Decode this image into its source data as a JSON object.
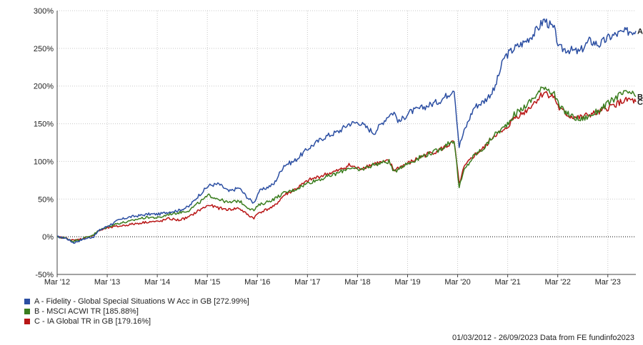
{
  "chart_data": {
    "type": "line",
    "y_axis": {
      "min": -50,
      "max": 300,
      "step": 50,
      "unit": "%",
      "ticks": [
        "-50%",
        "0%",
        "50%",
        "100%",
        "150%",
        "200%",
        "250%",
        "300%"
      ]
    },
    "x_axis": {
      "ticks": [
        "Mar '12",
        "Mar '13",
        "Mar '14",
        "Mar '15",
        "Mar '16",
        "Mar '17",
        "Mar '18",
        "Mar '19",
        "Mar '20",
        "Mar '21",
        "Mar '22",
        "Mar '23"
      ]
    },
    "grid": true,
    "zero_line": "dotted",
    "series": [
      {
        "name": "A - Fidelity - Global Special Situations W Acc in GB [272.99%]",
        "end_label": "A",
        "color": "#2b4ea2",
        "points": [
          [
            2012.17,
            0
          ],
          [
            2012.35,
            -2
          ],
          [
            2012.5,
            -8
          ],
          [
            2012.7,
            -3
          ],
          [
            2012.9,
            0
          ],
          [
            2013.0,
            8
          ],
          [
            2013.2,
            15
          ],
          [
            2013.4,
            22
          ],
          [
            2013.6,
            26
          ],
          [
            2013.8,
            28
          ],
          [
            2014.0,
            30
          ],
          [
            2014.2,
            30
          ],
          [
            2014.4,
            33
          ],
          [
            2014.6,
            35
          ],
          [
            2014.8,
            40
          ],
          [
            2015.0,
            55
          ],
          [
            2015.2,
            68
          ],
          [
            2015.4,
            70
          ],
          [
            2015.6,
            60
          ],
          [
            2015.8,
            65
          ],
          [
            2016.0,
            50
          ],
          [
            2016.1,
            45
          ],
          [
            2016.2,
            60
          ],
          [
            2016.5,
            70
          ],
          [
            2016.7,
            95
          ],
          [
            2016.9,
            100
          ],
          [
            2017.2,
            118
          ],
          [
            2017.5,
            132
          ],
          [
            2017.8,
            140
          ],
          [
            2018.0,
            150
          ],
          [
            2018.2,
            152
          ],
          [
            2018.5,
            138
          ],
          [
            2018.8,
            162
          ],
          [
            2018.9,
            165
          ],
          [
            2019.0,
            152
          ],
          [
            2019.2,
            165
          ],
          [
            2019.5,
            172
          ],
          [
            2019.8,
            180
          ],
          [
            2020.0,
            190
          ],
          [
            2020.1,
            197
          ],
          [
            2020.2,
            120
          ],
          [
            2020.3,
            140
          ],
          [
            2020.5,
            172
          ],
          [
            2020.7,
            180
          ],
          [
            2020.9,
            195
          ],
          [
            2021.1,
            238
          ],
          [
            2021.3,
            250
          ],
          [
            2021.5,
            258
          ],
          [
            2021.7,
            270
          ],
          [
            2021.9,
            288
          ],
          [
            2022.1,
            275
          ],
          [
            2022.2,
            250
          ],
          [
            2022.4,
            248
          ],
          [
            2022.6,
            245
          ],
          [
            2022.8,
            260
          ],
          [
            2023.0,
            255
          ],
          [
            2023.2,
            265
          ],
          [
            2023.4,
            270
          ],
          [
            2023.6,
            273
          ],
          [
            2023.73,
            273
          ]
        ]
      },
      {
        "name": "B - MSCI ACWI TR [185.88%]",
        "end_label": "B",
        "color": "#3a7d1e",
        "points": [
          [
            2012.17,
            0
          ],
          [
            2012.35,
            -2
          ],
          [
            2012.5,
            -6
          ],
          [
            2012.7,
            -2
          ],
          [
            2012.9,
            3
          ],
          [
            2013.0,
            8
          ],
          [
            2013.2,
            14
          ],
          [
            2013.4,
            18
          ],
          [
            2013.6,
            20
          ],
          [
            2013.8,
            24
          ],
          [
            2014.0,
            26
          ],
          [
            2014.2,
            25
          ],
          [
            2014.4,
            30
          ],
          [
            2014.6,
            32
          ],
          [
            2014.8,
            35
          ],
          [
            2015.0,
            45
          ],
          [
            2015.2,
            55
          ],
          [
            2015.4,
            50
          ],
          [
            2015.6,
            45
          ],
          [
            2015.8,
            48
          ],
          [
            2016.0,
            38
          ],
          [
            2016.1,
            35
          ],
          [
            2016.2,
            42
          ],
          [
            2016.5,
            50
          ],
          [
            2016.7,
            58
          ],
          [
            2016.9,
            62
          ],
          [
            2017.2,
            72
          ],
          [
            2017.5,
            78
          ],
          [
            2017.8,
            85
          ],
          [
            2018.0,
            92
          ],
          [
            2018.2,
            88
          ],
          [
            2018.5,
            96
          ],
          [
            2018.8,
            100
          ],
          [
            2018.9,
            85
          ],
          [
            2019.0,
            92
          ],
          [
            2019.2,
            98
          ],
          [
            2019.5,
            108
          ],
          [
            2019.8,
            115
          ],
          [
            2020.0,
            125
          ],
          [
            2020.1,
            128
          ],
          [
            2020.2,
            65
          ],
          [
            2020.3,
            88
          ],
          [
            2020.5,
            108
          ],
          [
            2020.7,
            118
          ],
          [
            2020.9,
            135
          ],
          [
            2021.1,
            145
          ],
          [
            2021.3,
            162
          ],
          [
            2021.5,
            172
          ],
          [
            2021.7,
            185
          ],
          [
            2021.9,
            200
          ],
          [
            2022.1,
            190
          ],
          [
            2022.2,
            172
          ],
          [
            2022.4,
            162
          ],
          [
            2022.6,
            155
          ],
          [
            2022.8,
            160
          ],
          [
            2023.0,
            168
          ],
          [
            2023.2,
            178
          ],
          [
            2023.4,
            188
          ],
          [
            2023.6,
            192
          ],
          [
            2023.73,
            186
          ]
        ]
      },
      {
        "name": "C - IA Global TR in GB [179.16%]",
        "end_label": "C",
        "color": "#b81616",
        "points": [
          [
            2012.17,
            0
          ],
          [
            2012.35,
            -2
          ],
          [
            2012.5,
            -5
          ],
          [
            2012.7,
            -2
          ],
          [
            2012.9,
            2
          ],
          [
            2013.0,
            8
          ],
          [
            2013.2,
            12
          ],
          [
            2013.4,
            14
          ],
          [
            2013.6,
            16
          ],
          [
            2013.8,
            18
          ],
          [
            2014.0,
            20
          ],
          [
            2014.2,
            20
          ],
          [
            2014.4,
            24
          ],
          [
            2014.6,
            22
          ],
          [
            2014.8,
            26
          ],
          [
            2015.0,
            35
          ],
          [
            2015.2,
            42
          ],
          [
            2015.4,
            38
          ],
          [
            2015.6,
            36
          ],
          [
            2015.8,
            38
          ],
          [
            2016.0,
            28
          ],
          [
            2016.1,
            25
          ],
          [
            2016.2,
            32
          ],
          [
            2016.5,
            40
          ],
          [
            2016.7,
            55
          ],
          [
            2016.9,
            62
          ],
          [
            2017.2,
            75
          ],
          [
            2017.5,
            82
          ],
          [
            2017.8,
            88
          ],
          [
            2018.0,
            95
          ],
          [
            2018.2,
            90
          ],
          [
            2018.5,
            97
          ],
          [
            2018.8,
            100
          ],
          [
            2018.9,
            88
          ],
          [
            2019.0,
            92
          ],
          [
            2019.2,
            98
          ],
          [
            2019.5,
            108
          ],
          [
            2019.8,
            115
          ],
          [
            2020.0,
            122
          ],
          [
            2020.1,
            126
          ],
          [
            2020.2,
            70
          ],
          [
            2020.3,
            92
          ],
          [
            2020.5,
            108
          ],
          [
            2020.7,
            118
          ],
          [
            2020.9,
            135
          ],
          [
            2021.1,
            140
          ],
          [
            2021.3,
            158
          ],
          [
            2021.5,
            165
          ],
          [
            2021.7,
            178
          ],
          [
            2021.9,
            192
          ],
          [
            2022.1,
            185
          ],
          [
            2022.2,
            170
          ],
          [
            2022.4,
            160
          ],
          [
            2022.6,
            158
          ],
          [
            2022.8,
            162
          ],
          [
            2023.0,
            165
          ],
          [
            2023.2,
            172
          ],
          [
            2023.4,
            178
          ],
          [
            2023.6,
            182
          ],
          [
            2023.73,
            179
          ]
        ]
      }
    ]
  },
  "footer": {
    "text": "01/03/2012 - 26/09/2023 Data from FE fundinfo2023"
  }
}
